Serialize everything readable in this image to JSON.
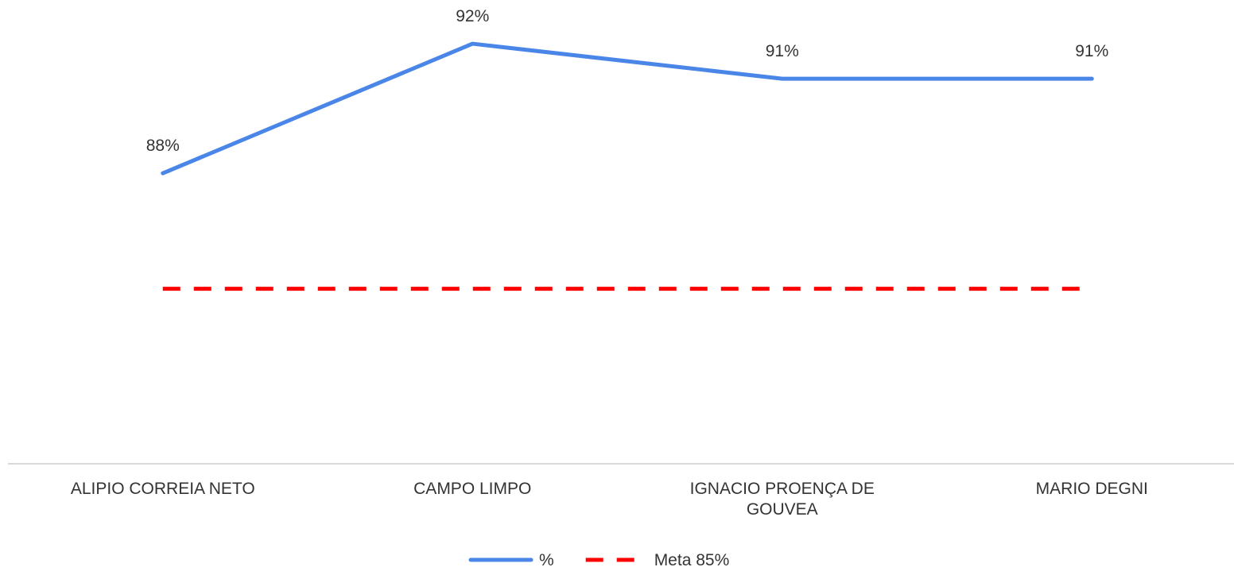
{
  "chart_data": {
    "type": "line",
    "categories": [
      "ALIPIO CORREIA NETO",
      "CAMPO LIMPO",
      "IGNACIO PROENÇA DE GOUVEA",
      "MARIO DEGNI"
    ],
    "series": [
      {
        "name": "%",
        "color": "#4a86e8",
        "values": [
          88.3,
          92,
          91,
          91
        ],
        "value_labels": [
          "88%",
          "92%",
          "91%",
          "91%"
        ]
      },
      {
        "name": "Meta 85%",
        "color": "#ff0000",
        "dashed": true,
        "values": [
          85,
          85,
          85,
          85
        ]
      }
    ],
    "ylim": [
      80,
      93
    ],
    "legend": "bottom"
  }
}
